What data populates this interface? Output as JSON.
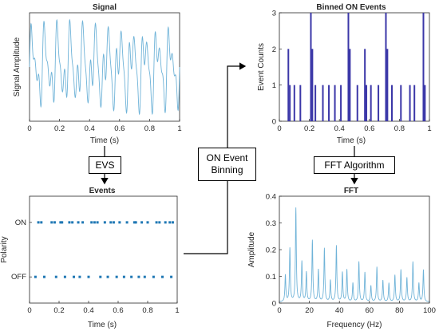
{
  "diagram": {
    "steps": {
      "evs": "EVS",
      "binning": "ON Event\nBinning",
      "fft": "FFT Algorithm"
    }
  },
  "chart_data": [
    {
      "id": "signal",
      "type": "line",
      "title": "Signal",
      "xlabel": "Time (s)",
      "ylabel": "Signal Amplitude",
      "xlim": [
        0,
        1
      ],
      "xticks": [
        "0",
        "0.2",
        "0.4",
        "0.6",
        "0.8",
        "1"
      ],
      "yticks": [],
      "color": "#6fb3d8",
      "components": [
        {
          "freq_hz": 12,
          "amplitude": 0.55
        },
        {
          "freq_hz": 23,
          "amplitude": 0.35
        },
        {
          "freq_hz": 35,
          "amplitude": 0.25
        }
      ]
    },
    {
      "id": "events",
      "type": "scatter",
      "title": "Events",
      "xlabel": "Time (s)",
      "ylabel": "Polarity",
      "xlim": [
        0,
        1
      ],
      "xticks": [
        "0",
        "0.2",
        "0.4",
        "0.6",
        "0.8",
        "1"
      ],
      "categories": [
        "ON",
        "OFF"
      ],
      "color": "#1f77b4",
      "series": [
        {
          "category": "ON",
          "x": [
            0.06,
            0.08,
            0.15,
            0.17,
            0.21,
            0.22,
            0.27,
            0.29,
            0.33,
            0.36,
            0.42,
            0.44,
            0.46,
            0.51,
            0.55,
            0.57,
            0.61,
            0.66,
            0.71,
            0.72,
            0.76,
            0.8,
            0.86,
            0.88,
            0.92,
            0.95,
            0.97
          ]
        },
        {
          "category": "OFF",
          "x": [
            0.04,
            0.1,
            0.18,
            0.24,
            0.3,
            0.34,
            0.4,
            0.48,
            0.53,
            0.59,
            0.64,
            0.69,
            0.74,
            0.78,
            0.84,
            0.9,
            0.96
          ]
        }
      ]
    },
    {
      "id": "binned",
      "type": "bar",
      "title": "Binned ON Events",
      "xlabel": "Time (s)",
      "ylabel": "Event Counts",
      "xlim": [
        0,
        1
      ],
      "ylim": [
        0,
        3
      ],
      "xticks": [
        "0",
        "0.2",
        "0.4",
        "0.6",
        "0.8",
        "1"
      ],
      "yticks": [
        "0",
        "1",
        "2",
        "3"
      ],
      "color": "#3b37a8",
      "x": [
        0.06,
        0.07,
        0.1,
        0.14,
        0.21,
        0.22,
        0.24,
        0.29,
        0.33,
        0.37,
        0.41,
        0.46,
        0.47,
        0.52,
        0.57,
        0.58,
        0.61,
        0.66,
        0.71,
        0.72,
        0.75,
        0.81,
        0.87,
        0.9,
        0.96,
        0.97
      ],
      "values": [
        2,
        1,
        1,
        1,
        3,
        2,
        1,
        1,
        1,
        1,
        1,
        3,
        2,
        1,
        2,
        1,
        1,
        1,
        3,
        2,
        1,
        1,
        1,
        1,
        3,
        1
      ]
    },
    {
      "id": "fft",
      "type": "line",
      "title": "FFT",
      "xlabel": "Frequency (Hz)",
      "ylabel": "Amplitude",
      "xlim": [
        0,
        100
      ],
      "ylim": [
        0,
        0.4
      ],
      "xticks": [
        "0",
        "20",
        "40",
        "60",
        "80",
        "100"
      ],
      "yticks": [
        "0",
        "0.1",
        "0.2",
        "0.3",
        "0.4"
      ],
      "color": "#6fb3d8",
      "peaks_hz": [
        4,
        7,
        11,
        15,
        18,
        22,
        26,
        30,
        34,
        38,
        42,
        45,
        49,
        53,
        57,
        61,
        65,
        69,
        73,
        77,
        81,
        85,
        89,
        93,
        96
      ],
      "peaks_amp": [
        0.1,
        0.2,
        0.35,
        0.15,
        0.11,
        0.23,
        0.12,
        0.2,
        0.08,
        0.21,
        0.11,
        0.12,
        0.07,
        0.15,
        0.11,
        0.06,
        0.13,
        0.08,
        0.07,
        0.1,
        0.12,
        0.09,
        0.15,
        0.07,
        0.12
      ]
    }
  ]
}
